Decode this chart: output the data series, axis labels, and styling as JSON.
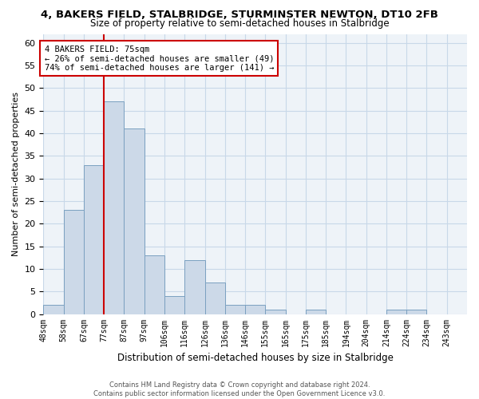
{
  "title": "4, BAKERS FIELD, STALBRIDGE, STURMINSTER NEWTON, DT10 2FB",
  "subtitle": "Size of property relative to semi-detached houses in Stalbridge",
  "xlabel": "Distribution of semi-detached houses by size in Stalbridge",
  "ylabel": "Number of semi-detached properties",
  "bin_labels": [
    "48sqm",
    "58sqm",
    "67sqm",
    "77sqm",
    "87sqm",
    "97sqm",
    "106sqm",
    "116sqm",
    "126sqm",
    "136sqm",
    "146sqm",
    "155sqm",
    "165sqm",
    "175sqm",
    "185sqm",
    "194sqm",
    "204sqm",
    "214sqm",
    "224sqm",
    "234sqm",
    "243sqm"
  ],
  "heights": [
    2,
    23,
    33,
    47,
    41,
    13,
    4,
    12,
    7,
    2,
    2,
    1,
    0,
    1,
    0,
    0,
    0,
    1,
    1,
    0,
    0
  ],
  "bar_facecolor": "#ccd9e8",
  "bar_edgecolor": "#7aA0c0",
  "grid_color": "#c8d8e8",
  "vline_x": 3,
  "vline_color": "#cc0000",
  "annotation_title": "4 BAKERS FIELD: 75sqm",
  "annotation_line1": "← 26% of semi-detached houses are smaller (49)",
  "annotation_line2": "74% of semi-detached houses are larger (141) →",
  "annotation_box_color": "#ffffff",
  "annotation_box_edgecolor": "#cc0000",
  "footer_line1": "Contains HM Land Registry data © Crown copyright and database right 2024.",
  "footer_line2": "Contains public sector information licensed under the Open Government Licence v3.0.",
  "ylim": [
    0,
    62
  ],
  "yticks": [
    0,
    5,
    10,
    15,
    20,
    25,
    30,
    35,
    40,
    45,
    50,
    55,
    60
  ],
  "background_color": "#eef3f8"
}
